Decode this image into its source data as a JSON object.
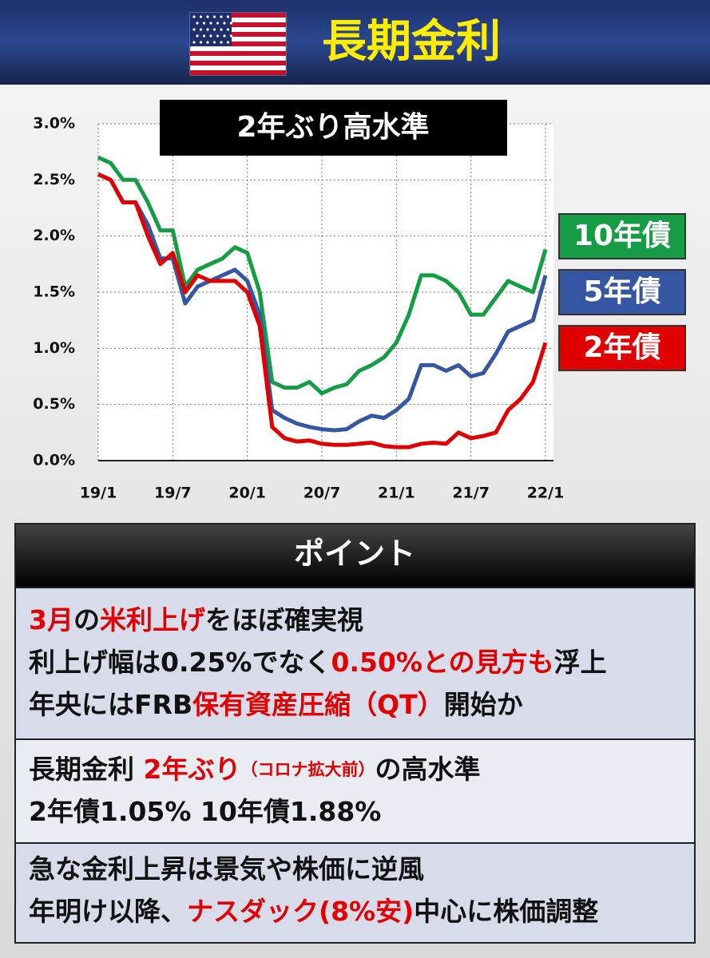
{
  "header": {
    "title": "長期金利"
  },
  "chart_data": {
    "type": "line",
    "annotation": "2年ぶり高水準",
    "categories": [
      "19/1",
      null,
      null,
      null,
      null,
      null,
      "19/7",
      null,
      null,
      null,
      null,
      null,
      "20/1",
      null,
      null,
      null,
      null,
      null,
      "20/7",
      null,
      null,
      null,
      null,
      null,
      "21/1",
      null,
      null,
      null,
      null,
      null,
      "21/7",
      null,
      null,
      null,
      null,
      null,
      "22/1"
    ],
    "series": [
      {
        "name": "10年債",
        "color": "#169c45",
        "values": [
          2.7,
          2.65,
          2.5,
          2.5,
          2.3,
          2.05,
          2.05,
          1.55,
          1.7,
          1.75,
          1.8,
          1.9,
          1.85,
          1.5,
          0.7,
          0.65,
          0.65,
          0.7,
          0.6,
          0.65,
          0.68,
          0.8,
          0.85,
          0.92,
          1.05,
          1.3,
          1.65,
          1.65,
          1.6,
          1.5,
          1.3,
          1.3,
          1.45,
          1.6,
          1.55,
          1.5,
          1.88
        ]
      },
      {
        "name": "5年債",
        "color": "#3556a3",
        "values": [
          2.55,
          2.5,
          2.3,
          2.3,
          2.1,
          1.8,
          1.8,
          1.4,
          1.55,
          1.6,
          1.65,
          1.7,
          1.6,
          1.3,
          0.45,
          0.38,
          0.33,
          0.3,
          0.28,
          0.27,
          0.28,
          0.35,
          0.4,
          0.38,
          0.45,
          0.55,
          0.85,
          0.85,
          0.8,
          0.85,
          0.75,
          0.78,
          0.95,
          1.15,
          1.2,
          1.25,
          1.65
        ]
      },
      {
        "name": "2年債",
        "color": "#e00000",
        "values": [
          2.55,
          2.5,
          2.3,
          2.3,
          2.0,
          1.75,
          1.85,
          1.5,
          1.65,
          1.6,
          1.6,
          1.6,
          1.5,
          1.2,
          0.3,
          0.2,
          0.17,
          0.18,
          0.15,
          0.14,
          0.14,
          0.15,
          0.16,
          0.13,
          0.12,
          0.12,
          0.15,
          0.16,
          0.15,
          0.25,
          0.2,
          0.22,
          0.25,
          0.45,
          0.55,
          0.7,
          1.05
        ]
      }
    ],
    "ylim": [
      0,
      3
    ],
    "yticks": [
      {
        "value": 0,
        "label": "0.0%"
      },
      {
        "value": 0.5,
        "label": "0.5%"
      },
      {
        "value": 1,
        "label": "1.0%"
      },
      {
        "value": 1.5,
        "label": "1.5%"
      },
      {
        "value": 2,
        "label": "2.0%"
      },
      {
        "value": 2.5,
        "label": "2.5%"
      },
      {
        "value": 3,
        "label": "3.0%"
      }
    ],
    "grid": true
  },
  "points": {
    "title": "ポイント",
    "items": [
      [
        [
          "3月",
          "の",
          "米利上げ",
          "をほぼ確実視"
        ],
        [
          "利上げ幅は0.25%でなく",
          "0.50%との見方も",
          "浮上"
        ],
        [
          "年央にはFRB",
          "保有資産圧縮（QT）",
          "開始か"
        ]
      ],
      [
        [
          "長期金利 ",
          "2年ぶり",
          "（コロナ拡大前）",
          "の高水準"
        ],
        [
          "2年債1.05% 10年債1.88%"
        ]
      ],
      [
        [
          "急な金利上昇は景気や株価に逆風"
        ],
        [
          "年明け以降、",
          "ナスダック(8%安)",
          "中心に株価調整"
        ]
      ]
    ]
  }
}
